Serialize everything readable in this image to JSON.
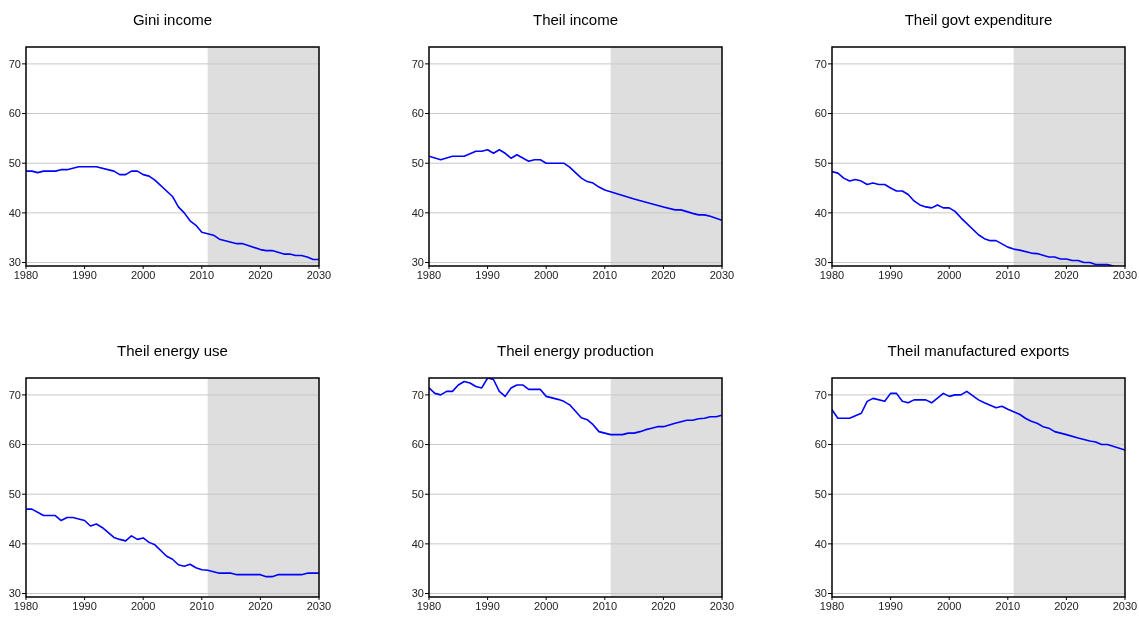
{
  "chart_data": [
    {
      "type": "line",
      "title": "Gini income",
      "x": [
        1980,
        1981,
        1982,
        1983,
        1985,
        1986,
        1987,
        1989,
        1992,
        1995,
        1996,
        1997,
        1998,
        1999,
        2000,
        2001,
        2002,
        2005,
        2006,
        2007,
        2008,
        2009,
        2010,
        2012,
        2013,
        2016,
        2017,
        2020,
        2021,
        2022,
        2024,
        2025,
        2026,
        2027,
        2028,
        2029,
        2030
      ],
      "series": [
        {
          "color": "#0000ff",
          "values": [
            48.4,
            48.4,
            48.1,
            48.4,
            48.4,
            48.7,
            48.7,
            49.3,
            49.3,
            48.4,
            47.7,
            47.7,
            48.4,
            48.4,
            47.7,
            47.4,
            46.6,
            43.3,
            41.2,
            40.0,
            38.4,
            37.5,
            36.1,
            35.5,
            34.7,
            33.8,
            33.8,
            32.6,
            32.4,
            32.4,
            31.7,
            31.7,
            31.4,
            31.4,
            31.1,
            30.6,
            30.6
          ]
        }
      ],
      "xlim": [
        1980,
        2030
      ],
      "xticks": [
        1980,
        1990,
        2000,
        2010,
        2020,
        2030
      ],
      "ylim": [
        29.3,
        73.4
      ],
      "yticks": [
        30,
        40,
        50,
        60,
        70
      ],
      "grid": "y",
      "bands": [
        {
          "axis": "x",
          "from": 2011,
          "to": 2030,
          "color": "#dedede"
        }
      ]
    },
    {
      "type": "line",
      "title": "Theil income",
      "x": [
        1980,
        1982,
        1984,
        1986,
        1988,
        1989,
        1990,
        1991,
        1992,
        1993,
        1994,
        1995,
        1997,
        1998,
        1999,
        2000,
        2003,
        2004,
        2006,
        2007,
        2008,
        2009,
        2010,
        2015,
        2020,
        2022,
        2023,
        2025,
        2026,
        2027,
        2028,
        2030
      ],
      "series": [
        {
          "color": "#0000ff",
          "values": [
            51.4,
            50.7,
            51.4,
            51.4,
            52.4,
            52.4,
            52.7,
            52.0,
            52.7,
            52.0,
            51.0,
            51.7,
            50.4,
            50.7,
            50.7,
            50.0,
            50.0,
            49.2,
            47.0,
            46.3,
            46.0,
            45.2,
            44.6,
            42.8,
            41.2,
            40.6,
            40.6,
            39.9,
            39.6,
            39.6,
            39.3,
            38.5
          ]
        }
      ],
      "xlim": [
        1980,
        2030
      ],
      "xticks": [
        1980,
        1990,
        2000,
        2010,
        2020,
        2030
      ],
      "ylim": [
        29.3,
        73.4
      ],
      "yticks": [
        30,
        40,
        50,
        60,
        70
      ],
      "grid": "y",
      "bands": [
        {
          "axis": "x",
          "from": 2011,
          "to": 2030,
          "color": "#dedede"
        }
      ]
    },
    {
      "type": "line",
      "title": "Theil govt expenditure",
      "x": [
        1980,
        1981,
        1982,
        1983,
        1984,
        1985,
        1986,
        1987,
        1988,
        1989,
        1990,
        1991,
        1992,
        1993,
        1994,
        1995,
        1996,
        1997,
        1998,
        1999,
        2000,
        2001,
        2002,
        2005,
        2006,
        2007,
        2008,
        2010,
        2011,
        2012,
        2014,
        2015,
        2017,
        2018,
        2019,
        2020,
        2021,
        2022,
        2023,
        2024,
        2025,
        2027,
        2028
      ],
      "series": [
        {
          "color": "#0000ff",
          "values": [
            48.3,
            48.0,
            47.0,
            46.4,
            46.7,
            46.4,
            45.7,
            46.0,
            45.7,
            45.7,
            45.0,
            44.4,
            44.4,
            43.7,
            42.4,
            41.6,
            41.2,
            41.0,
            41.6,
            41.0,
            41.0,
            40.3,
            39.0,
            35.6,
            34.8,
            34.4,
            34.4,
            33.1,
            32.7,
            32.5,
            31.9,
            31.8,
            31.1,
            31.1,
            30.7,
            30.7,
            30.4,
            30.4,
            30.0,
            30.0,
            29.6,
            29.6,
            29.3
          ]
        }
      ],
      "xlim": [
        1980,
        2030
      ],
      "xticks": [
        1980,
        1990,
        2000,
        2010,
        2020,
        2030
      ],
      "ylim": [
        29.3,
        73.4
      ],
      "yticks": [
        30,
        40,
        50,
        60,
        70
      ],
      "grid": "y",
      "bands": [
        {
          "axis": "x",
          "from": 2011,
          "to": 2030,
          "color": "#dedede"
        }
      ]
    },
    {
      "type": "line",
      "title": "Theil energy use",
      "x": [
        1980,
        1981,
        1983,
        1985,
        1986,
        1987,
        1988,
        1990,
        1991,
        1992,
        1993,
        1995,
        1996,
        1997,
        1998,
        1999,
        2000,
        2001,
        2002,
        2004,
        2005,
        2006,
        2007,
        2008,
        2009,
        2010,
        2011,
        2013,
        2015,
        2016,
        2020,
        2021,
        2022,
        2023,
        2027,
        2028,
        2030
      ],
      "series": [
        {
          "color": "#0000ff",
          "values": [
            47.0,
            47.0,
            45.7,
            45.7,
            44.7,
            45.3,
            45.3,
            44.7,
            43.6,
            44.0,
            43.3,
            41.3,
            40.9,
            40.6,
            41.6,
            40.9,
            41.2,
            40.3,
            39.8,
            37.5,
            36.9,
            35.8,
            35.5,
            35.9,
            35.2,
            34.8,
            34.7,
            34.1,
            34.1,
            33.8,
            33.8,
            33.4,
            33.4,
            33.8,
            33.8,
            34.1,
            34.1
          ]
        }
      ],
      "xlim": [
        1980,
        2030
      ],
      "xticks": [
        1980,
        1990,
        2000,
        2010,
        2020,
        2030
      ],
      "ylim": [
        29.3,
        73.4
      ],
      "yticks": [
        30,
        40,
        50,
        60,
        70
      ],
      "grid": "y",
      "bands": [
        {
          "axis": "x",
          "from": 2011,
          "to": 2030,
          "color": "#dedede"
        }
      ]
    },
    {
      "type": "line",
      "title": "Theil energy production",
      "x": [
        1980,
        1981,
        1982,
        1983,
        1984,
        1985,
        1986,
        1987,
        1988,
        1989,
        1990,
        1991,
        1992,
        1993,
        1994,
        1995,
        1996,
        1997,
        1999,
        2000,
        2002,
        2003,
        2004,
        2005,
        2006,
        2007,
        2008,
        2009,
        2010,
        2011,
        2013,
        2014,
        2015,
        2016,
        2017,
        2018,
        2019,
        2020,
        2022,
        2024,
        2025,
        2026,
        2027,
        2028,
        2029,
        2030
      ],
      "series": [
        {
          "color": "#0000ff",
          "values": [
            71.4,
            70.3,
            70.0,
            70.7,
            70.7,
            72.0,
            72.7,
            72.4,
            71.7,
            71.4,
            73.4,
            73.1,
            70.7,
            69.7,
            71.4,
            72.0,
            72.0,
            71.1,
            71.1,
            69.7,
            69.1,
            68.7,
            68.0,
            66.7,
            65.4,
            65.0,
            64.0,
            62.6,
            62.3,
            62.0,
            62.0,
            62.3,
            62.3,
            62.6,
            63.0,
            63.3,
            63.6,
            63.6,
            64.3,
            64.9,
            64.9,
            65.2,
            65.3,
            65.6,
            65.6,
            65.9
          ]
        }
      ],
      "xlim": [
        1980,
        2030
      ],
      "xticks": [
        1980,
        1990,
        2000,
        2010,
        2020,
        2030
      ],
      "ylim": [
        29.3,
        73.4
      ],
      "yticks": [
        30,
        40,
        50,
        60,
        70
      ],
      "grid": "y",
      "bands": [
        {
          "axis": "x",
          "from": 2011,
          "to": 2030,
          "color": "#dedede"
        }
      ]
    },
    {
      "type": "line",
      "title": "Theil manufactured exports",
      "x": [
        1980,
        1981,
        1983,
        1985,
        1986,
        1987,
        1989,
        1990,
        1991,
        1992,
        1993,
        1994,
        1996,
        1997,
        1999,
        2000,
        2001,
        2002,
        2003,
        2005,
        2006,
        2008,
        2009,
        2010,
        2012,
        2013,
        2014,
        2015,
        2016,
        2017,
        2018,
        2020,
        2022,
        2024,
        2025,
        2026,
        2027,
        2030
      ],
      "series": [
        {
          "color": "#0000ff",
          "values": [
            67.0,
            65.3,
            65.3,
            66.3,
            68.7,
            69.3,
            68.7,
            70.3,
            70.3,
            68.7,
            68.4,
            69.0,
            69.0,
            68.4,
            70.3,
            69.7,
            70.0,
            70.0,
            70.7,
            69.0,
            68.4,
            67.4,
            67.7,
            67.1,
            66.1,
            65.3,
            64.7,
            64.3,
            63.6,
            63.3,
            62.6,
            62.0,
            61.3,
            60.7,
            60.5,
            60.0,
            60.0,
            58.9
          ]
        }
      ],
      "xlim": [
        1980,
        2030
      ],
      "xticks": [
        1980,
        1990,
        2000,
        2010,
        2020,
        2030
      ],
      "ylim": [
        29.3,
        73.4
      ],
      "yticks": [
        30,
        40,
        50,
        60,
        70
      ],
      "grid": "y",
      "bands": [
        {
          "axis": "x",
          "from": 2011,
          "to": 2030,
          "color": "#dedede"
        }
      ]
    }
  ]
}
